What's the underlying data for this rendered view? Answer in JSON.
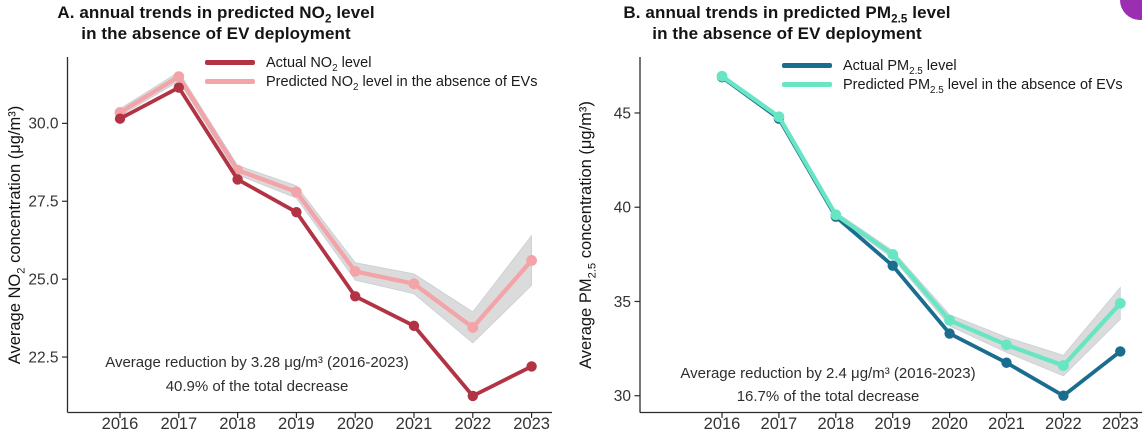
{
  "page": {
    "background": "#ffffff",
    "corner_badge_color": "#9b2fb2"
  },
  "panels": [
    {
      "panel_letter": "A",
      "title_line1": "A. annual trends in predicted NO_{2} level",
      "title_line2": "in the absence of EV deployment",
      "y_axis_label": "Average NO_{2} concentration (μg/m³)",
      "legend": [
        {
          "label": "Actual NO_{2} level",
          "color": "#b23444"
        },
        {
          "label": "Predicted NO_{2} level in the absence of EVs",
          "color": "#f3a4a9"
        }
      ],
      "annotation_lines": [
        "Average reduction by 3.28 μg/m³ (2016-2023)",
        "40.9% of the total decrease"
      ],
      "chart_data": {
        "type": "line",
        "x": [
          2016,
          2017,
          2018,
          2019,
          2020,
          2021,
          2022,
          2023
        ],
        "xtick_labels": [
          "2016",
          "2017",
          "2018",
          "2019",
          "2020",
          "2021",
          "2022",
          "2023"
        ],
        "series": [
          {
            "name": "Actual NO2 level",
            "color": "#b23444",
            "values": [
              30.15,
              31.15,
              28.2,
              27.15,
              24.45,
              23.5,
              21.25,
              22.2
            ]
          },
          {
            "name": "Predicted NO2 level in the absence of EVs",
            "color": "#f3a4a9",
            "values": [
              30.35,
              31.5,
              28.5,
              27.8,
              25.25,
              24.85,
              23.45,
              25.6
            ],
            "ribbon_delta": [
              0.12,
              0.15,
              0.15,
              0.2,
              0.28,
              0.32,
              0.5,
              0.8
            ],
            "ribbon_color": "#d2d2d2"
          }
        ],
        "ylim": [
          20.72,
          32.13
        ],
        "yticks": [
          22.5,
          25.0,
          27.5,
          30.0
        ],
        "ytick_labels": [
          "22.5",
          "25.0",
          "27.5",
          "30.0"
        ],
        "xlabel": "",
        "ylabel": "Average NO2 concentration (μg/m³)",
        "grid": false,
        "legend_position": "top-right",
        "actual_on_top": true
      }
    },
    {
      "panel_letter": "B",
      "title_line1": "B. annual trends in predicted PM_{2.5} level",
      "title_line2": "in the absence of EV deployment",
      "y_axis_label": "Average PM_{2.5} concentration (μg/m³)",
      "legend": [
        {
          "label": "Actual PM_{2.5} level",
          "color": "#1b6d90"
        },
        {
          "label": "Predicted PM_{2.5} level in the absence of EVs",
          "color": "#68e6c4"
        }
      ],
      "annotation_lines": [
        "Average reduction by 2.4 μg/m³ (2016-2023)",
        "16.7% of the total decrease"
      ],
      "chart_data": {
        "type": "line",
        "x": [
          2016,
          2017,
          2018,
          2019,
          2020,
          2021,
          2022,
          2023
        ],
        "xtick_labels": [
          "2016",
          "2017",
          "2018",
          "2019",
          "2020",
          "2021",
          "2022",
          "2023"
        ],
        "series": [
          {
            "name": "Actual PM2.5 level",
            "color": "#1b6d90",
            "values": [
              46.9,
              44.7,
              39.5,
              36.9,
              33.3,
              31.75,
              30.0,
              32.35
            ]
          },
          {
            "name": "Predicted PM2.5 level in the absence of EVs",
            "color": "#68e6c4",
            "values": [
              46.95,
              44.8,
              39.6,
              37.5,
              34.0,
              32.7,
              31.6,
              34.9
            ],
            "ribbon_delta": [
              0.1,
              0.1,
              0.15,
              0.2,
              0.3,
              0.4,
              0.55,
              0.85
            ],
            "ribbon_color": "#d2d2d2"
          }
        ],
        "ylim": [
          29.11,
          47.97
        ],
        "yticks": [
          30,
          35,
          40,
          45
        ],
        "ytick_labels": [
          "30",
          "35",
          "40",
          "45"
        ],
        "xlabel": "",
        "ylabel": "Average PM2.5 concentration (μg/m³)",
        "grid": false,
        "legend_position": "top-right",
        "actual_on_top": false
      }
    }
  ]
}
